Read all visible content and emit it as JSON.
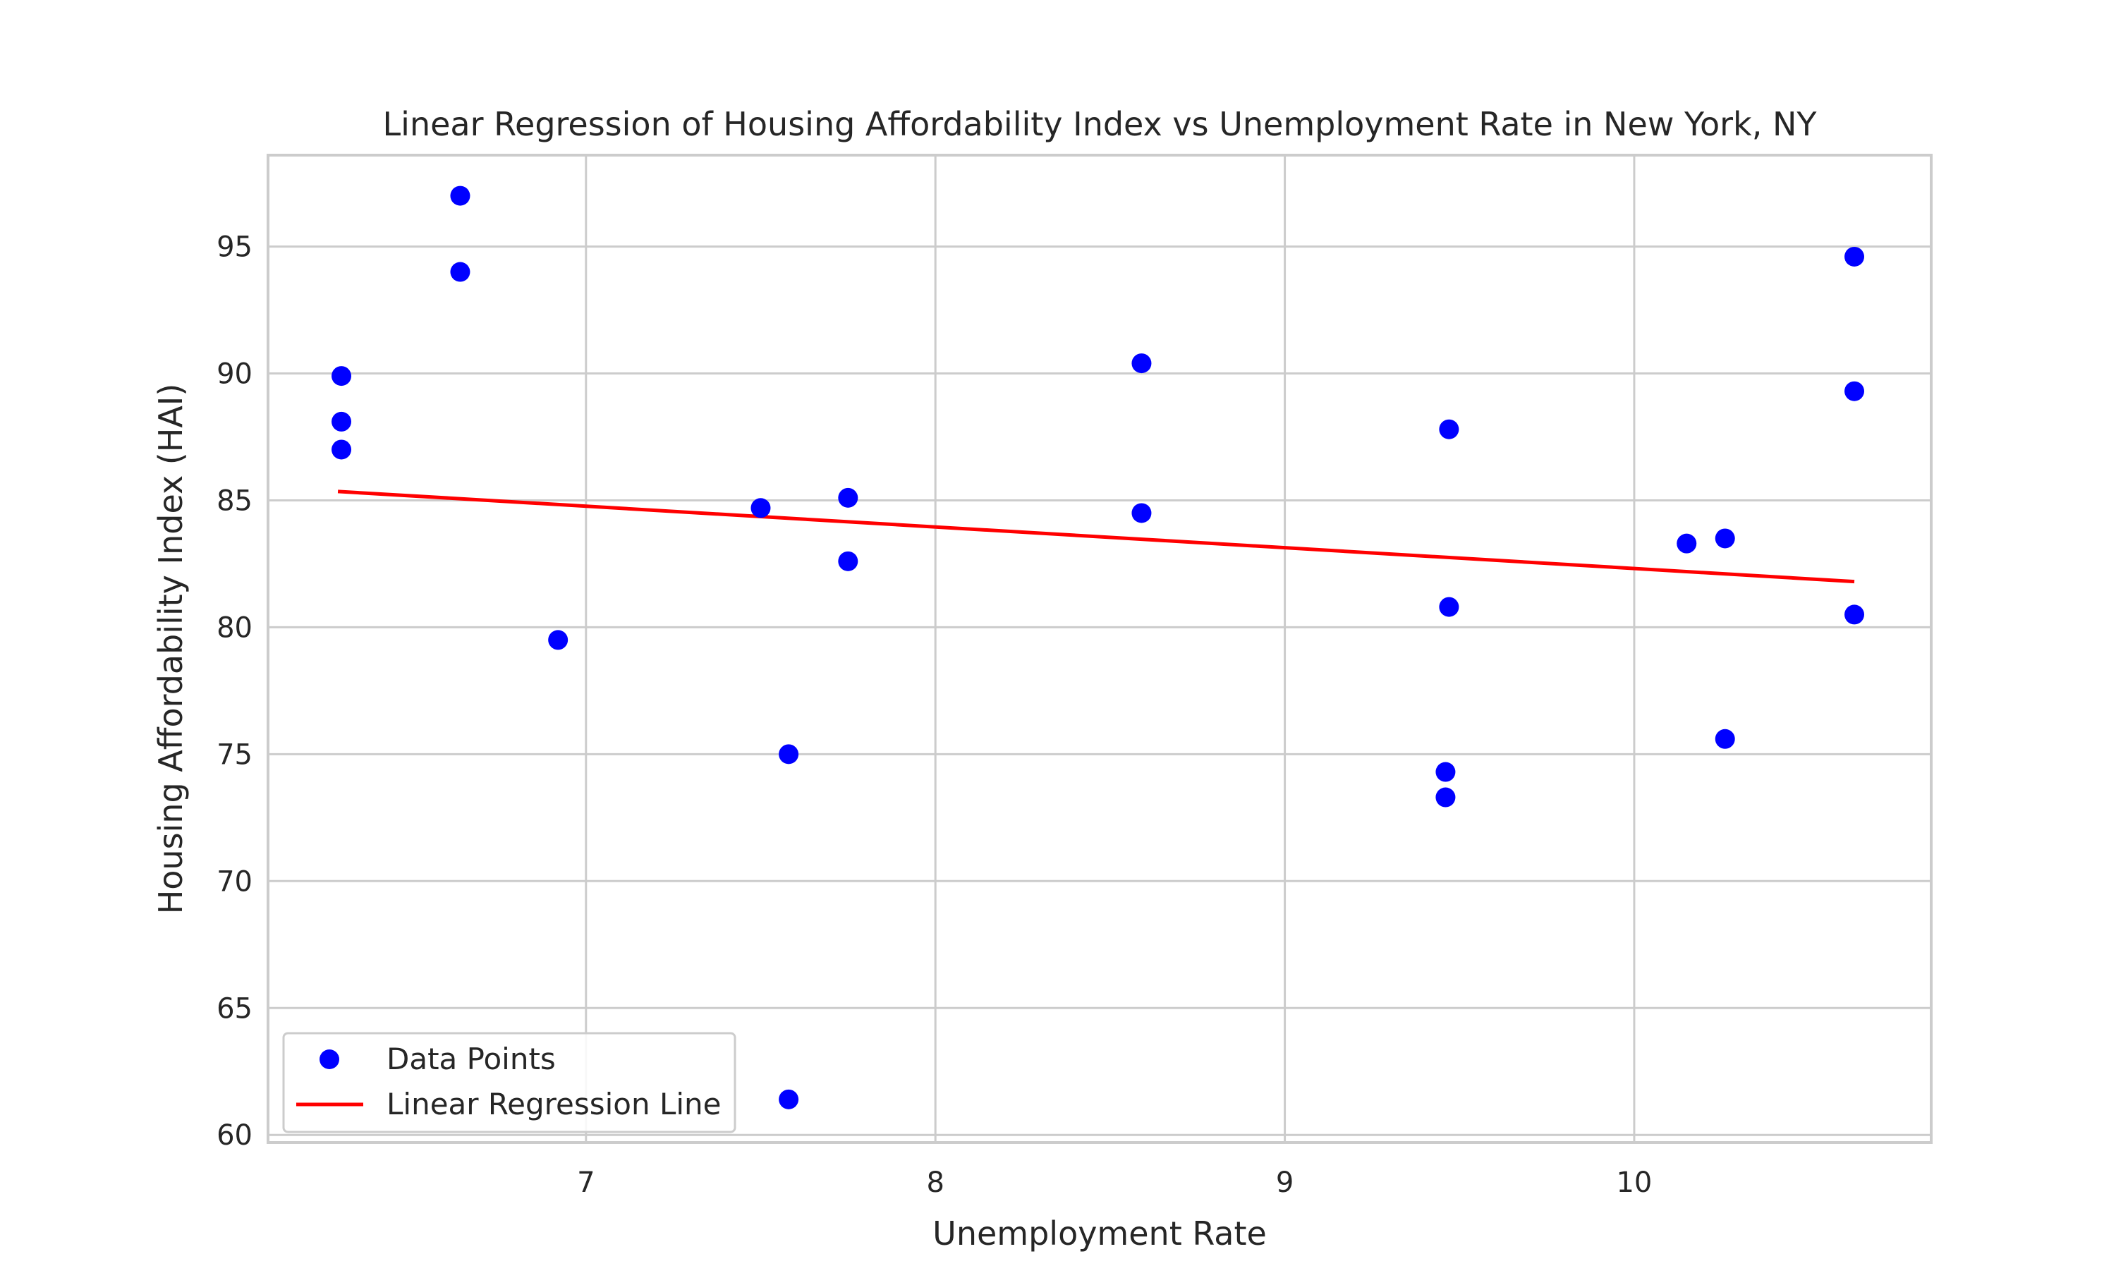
{
  "chart_data": {
    "type": "scatter",
    "title": "Linear Regression of Housing Affordability Index vs Unemployment Rate in New York, NY",
    "xlabel": "Unemployment Rate",
    "ylabel": "Housing Affordability Index (HAI)",
    "xlim": [
      6.09,
      10.85
    ],
    "ylim": [
      59.7,
      98.6
    ],
    "xticks": [
      7,
      8,
      9,
      10
    ],
    "yticks": [
      60,
      65,
      70,
      75,
      80,
      85,
      90,
      95
    ],
    "grid": true,
    "legend_position": "lower-left",
    "series": [
      {
        "name": "Data Points",
        "kind": "scatter",
        "color": "#0000ff",
        "points": [
          [
            6.3,
            89.9
          ],
          [
            6.3,
            88.1
          ],
          [
            6.3,
            87.0
          ],
          [
            6.64,
            97.0
          ],
          [
            6.64,
            94.0
          ],
          [
            6.92,
            79.5
          ],
          [
            7.5,
            84.7
          ],
          [
            7.58,
            75.0
          ],
          [
            7.58,
            61.4
          ],
          [
            7.75,
            85.1
          ],
          [
            7.75,
            82.6
          ],
          [
            8.59,
            90.4
          ],
          [
            8.59,
            84.5
          ],
          [
            9.47,
            87.8
          ],
          [
            9.47,
            80.8
          ],
          [
            9.46,
            74.3
          ],
          [
            9.46,
            73.3
          ],
          [
            10.15,
            83.3
          ],
          [
            10.26,
            83.5
          ],
          [
            10.26,
            75.6
          ],
          [
            10.63,
            94.6
          ],
          [
            10.63,
            89.3
          ],
          [
            10.63,
            80.5
          ]
        ]
      },
      {
        "name": "Linear Regression Line",
        "kind": "line",
        "color": "#ff0000",
        "points": [
          [
            6.29,
            85.35
          ],
          [
            10.63,
            81.8
          ]
        ]
      }
    ]
  }
}
